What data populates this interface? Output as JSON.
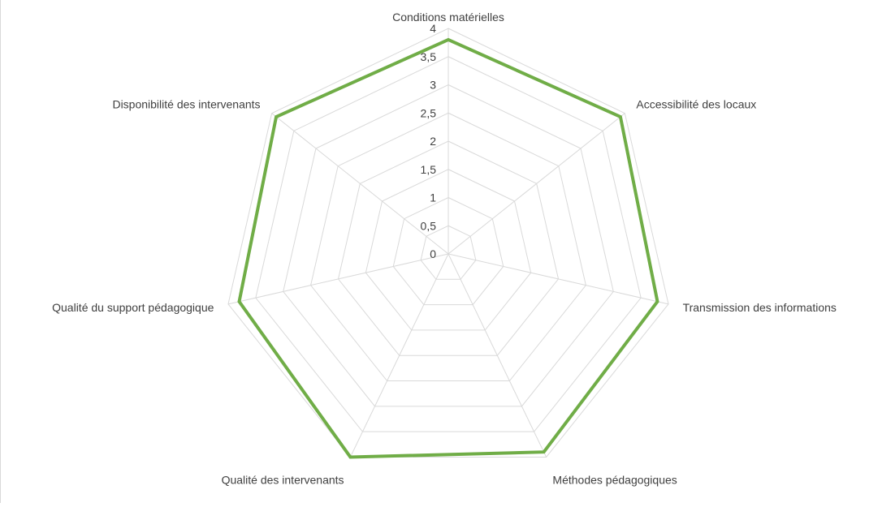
{
  "chart_data": {
    "type": "radar",
    "title": "",
    "categories": [
      "Conditions matérielles",
      "Accessibilité des locaux",
      "Transmission des informations",
      "Méthodes pédagogiques",
      "Qualité des intervenants",
      "Qualité du support pédagogique",
      "Disponibilité des intervenants"
    ],
    "series": [
      {
        "values": [
          3.8,
          3.9,
          3.8,
          3.9,
          4.0,
          3.8,
          3.9
        ]
      }
    ],
    "r_ticks": [
      "0",
      "0,5",
      "1",
      "1,5",
      "2",
      "2,5",
      "3",
      "3,5",
      "4"
    ],
    "rlim": [
      0,
      4
    ],
    "grid": true,
    "legend": "none",
    "colors": {
      "series": "#70ad47",
      "grid": "#d9d9d9",
      "text": "#404040"
    }
  }
}
